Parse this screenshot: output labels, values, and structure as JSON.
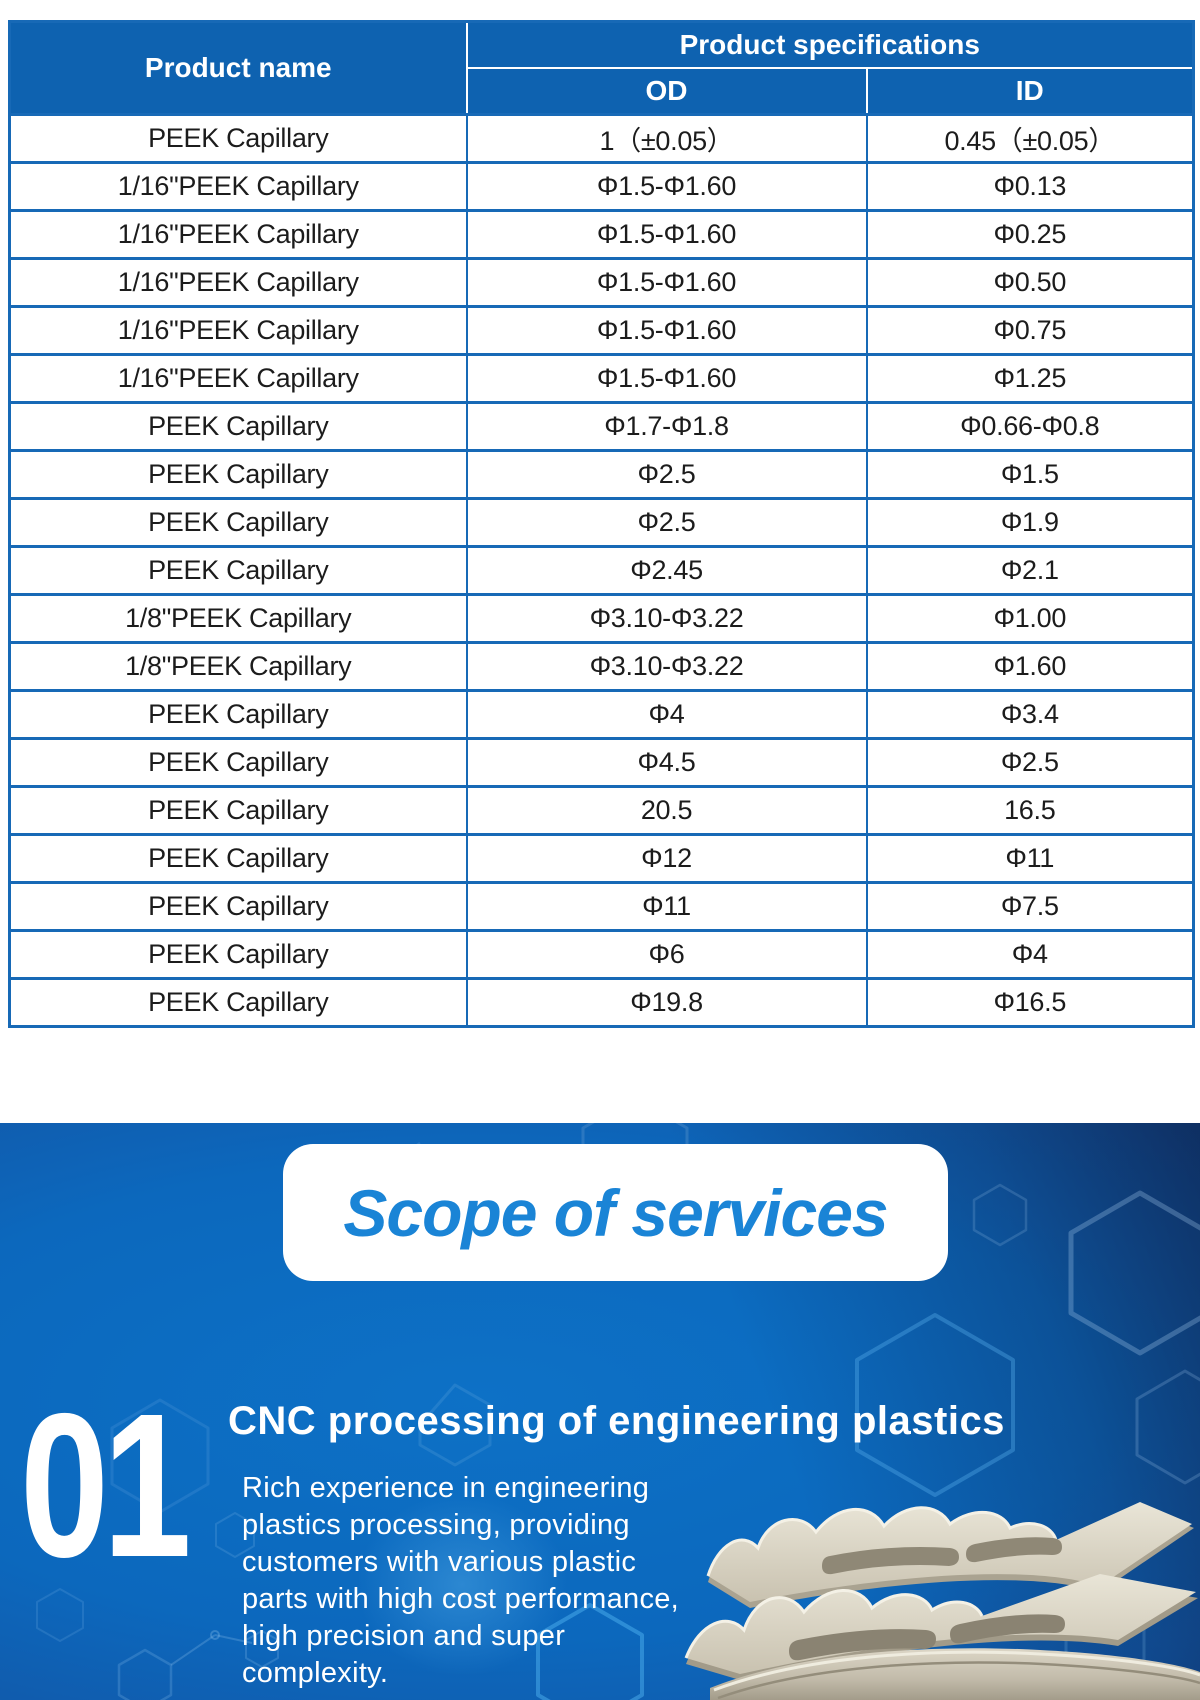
{
  "table": {
    "header": {
      "product_name": "Product name",
      "product_specifications": "Product specifications",
      "od": "OD",
      "id": "ID"
    },
    "rows": [
      {
        "name": "PEEK Capillary",
        "od": "1（±0.05）",
        "id": "0.45（±0.05）"
      },
      {
        "name": "1/16\"PEEK Capillary",
        "od": "Φ1.5-Φ1.60",
        "id": "Φ0.13"
      },
      {
        "name": "1/16\"PEEK Capillary",
        "od": "Φ1.5-Φ1.60",
        "id": "Φ0.25"
      },
      {
        "name": "1/16\"PEEK Capillary",
        "od": "Φ1.5-Φ1.60",
        "id": "Φ0.50"
      },
      {
        "name": "1/16\"PEEK Capillary",
        "od": "Φ1.5-Φ1.60",
        "id": "Φ0.75"
      },
      {
        "name": "1/16\"PEEK Capillary",
        "od": "Φ1.5-Φ1.60",
        "id": "Φ1.25"
      },
      {
        "name": "PEEK Capillary",
        "od": "Φ1.7-Φ1.8",
        "id": "Φ0.66-Φ0.8"
      },
      {
        "name": "PEEK Capillary",
        "od": "Φ2.5",
        "id": "Φ1.5"
      },
      {
        "name": "PEEK Capillary",
        "od": "Φ2.5",
        "id": "Φ1.9"
      },
      {
        "name": "PEEK Capillary",
        "od": "Φ2.45",
        "id": "Φ2.1"
      },
      {
        "name": "1/8\"PEEK Capillary",
        "od": "Φ3.10-Φ3.22",
        "id": "Φ1.00"
      },
      {
        "name": "1/8\"PEEK Capillary",
        "od": "Φ3.10-Φ3.22",
        "id": "Φ1.60"
      },
      {
        "name": "PEEK Capillary",
        "od": "Φ4",
        "id": "Φ3.4"
      },
      {
        "name": "PEEK Capillary",
        "od": "Φ4.5",
        "id": "Φ2.5"
      },
      {
        "name": "PEEK Capillary",
        "od": "20.5",
        "id": "16.5"
      },
      {
        "name": "PEEK Capillary",
        "od": "Φ12",
        "id": "Φ11"
      },
      {
        "name": "PEEK Capillary",
        "od": "Φ11",
        "id": "Φ7.5"
      },
      {
        "name": "PEEK Capillary",
        "od": "Φ6",
        "id": "Φ4"
      },
      {
        "name": "PEEK Capillary",
        "od": "Φ19.8",
        "id": "Φ16.5"
      }
    ]
  },
  "services": {
    "badge_title": "Scope of services",
    "item_number": "01",
    "item_title": "CNC processing of engineering plastics",
    "item_description_lines": [
      "Rich experience in engineering",
      "plastics processing, providing",
      "customers with various plastic",
      "parts with high cost performance,",
      "high precision and super",
      "complexity."
    ],
    "image_name": "cnc-machined-peek-part"
  },
  "colors": {
    "table_header_blue": "#0e62b0",
    "table_border_blue": "#1769b6",
    "badge_text_blue": "#1a84d6",
    "hero_bright_blue": "#0d71c6",
    "hero_dark_navy": "#152c60",
    "part_beige": "#d8d2c2",
    "text_white": "#ffffff",
    "table_text_dark": "#1c1c1c"
  }
}
